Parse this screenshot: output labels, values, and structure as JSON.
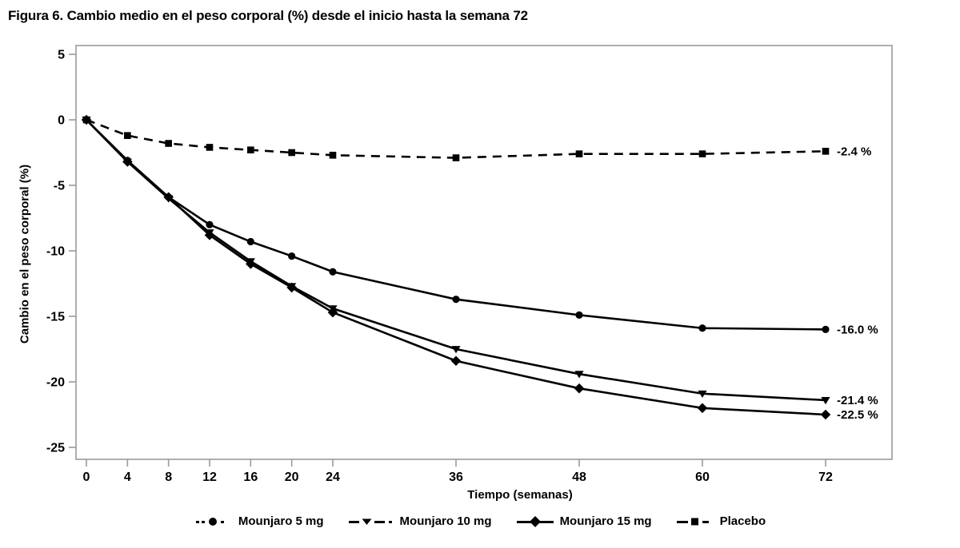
{
  "figure": {
    "number_label": "Figura 6."
  },
  "chart_data": {
    "type": "line",
    "title": "Figura 6. Cambio medio en el peso corporal (%) desde el inicio hasta la semana 72",
    "xlabel": "Tiempo (semanas)",
    "ylabel": "Cambio en el peso corporal (%)",
    "x": [
      0,
      4,
      8,
      12,
      16,
      20,
      24,
      36,
      48,
      60,
      72
    ],
    "yticks": [
      5,
      0,
      -5,
      -10,
      -15,
      -20,
      -25
    ],
    "xlim": [
      -1,
      78.5
    ],
    "ylim": [
      -25.9,
      5.7
    ],
    "grid": false,
    "legend_position": "bottom",
    "series": [
      {
        "name": "Mounjaro 5 mg",
        "marker": "circle",
        "line": "solid",
        "end_label": "-16.0 %",
        "values": [
          0,
          -3.1,
          -5.9,
          -8.0,
          -9.3,
          -10.4,
          -11.6,
          -13.7,
          -14.9,
          -15.9,
          -16.0
        ]
      },
      {
        "name": "Mounjaro 10 mg",
        "marker": "triangle-down",
        "line": "solid",
        "end_label": "-21.4 %",
        "values": [
          0,
          -3.2,
          -6.0,
          -8.6,
          -10.8,
          -12.7,
          -14.4,
          -17.5,
          -19.4,
          -20.9,
          -21.4
        ]
      },
      {
        "name": "Mounjaro 15 mg",
        "marker": "diamond",
        "line": "solid",
        "end_label": "-22.5 %",
        "values": [
          0,
          -3.2,
          -5.9,
          -8.8,
          -11.0,
          -12.8,
          -14.7,
          -18.4,
          -20.5,
          -22.0,
          -22.5
        ]
      },
      {
        "name": "Placebo",
        "marker": "square",
        "line": "dashed",
        "end_label": "-2.4 %",
        "values": [
          0,
          -1.2,
          -1.8,
          -2.1,
          -2.3,
          -2.5,
          -2.7,
          -2.9,
          -2.6,
          -2.6,
          -2.4
        ]
      }
    ],
    "colors": {
      "series": "#000000",
      "axis_frame": "#9a9a9a"
    }
  }
}
